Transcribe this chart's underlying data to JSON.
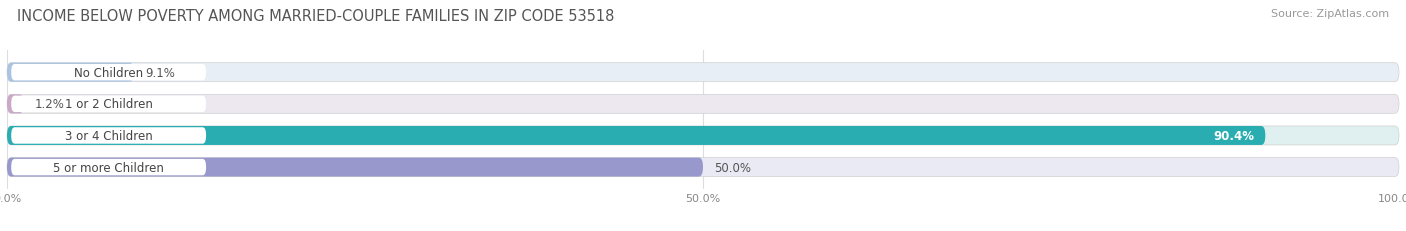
{
  "title": "INCOME BELOW POVERTY AMONG MARRIED-COUPLE FAMILIES IN ZIP CODE 53518",
  "source": "Source: ZipAtlas.com",
  "categories": [
    "No Children",
    "1 or 2 Children",
    "3 or 4 Children",
    "5 or more Children"
  ],
  "values": [
    9.1,
    1.2,
    90.4,
    50.0
  ],
  "bar_colors": [
    "#aac4e0",
    "#c9a8c8",
    "#29adb0",
    "#9898cc"
  ],
  "bar_bg_colors": [
    "#e8eef5",
    "#ede8f0",
    "#e0f0f0",
    "#eaeaf5"
  ],
  "label_bg_colors": [
    "#ffffff",
    "#ffffff",
    "#ffffff",
    "#ffffff"
  ],
  "value_label_colors": [
    "#555555",
    "#555555",
    "#ffffff",
    "#555555"
  ],
  "background_color": "#ffffff",
  "grid_color": "#dddddd",
  "xlim": [
    0,
    100
  ],
  "xtick_labels": [
    "0.0%",
    "50.0%",
    "100.0%"
  ],
  "xtick_positions": [
    0,
    50,
    100
  ],
  "title_fontsize": 10.5,
  "source_fontsize": 8,
  "label_fontsize": 8.5,
  "value_fontsize": 8.5,
  "bar_height": 0.6,
  "bar_gap": 1.0,
  "figsize": [
    14.06,
    2.32
  ],
  "dpi": 100
}
